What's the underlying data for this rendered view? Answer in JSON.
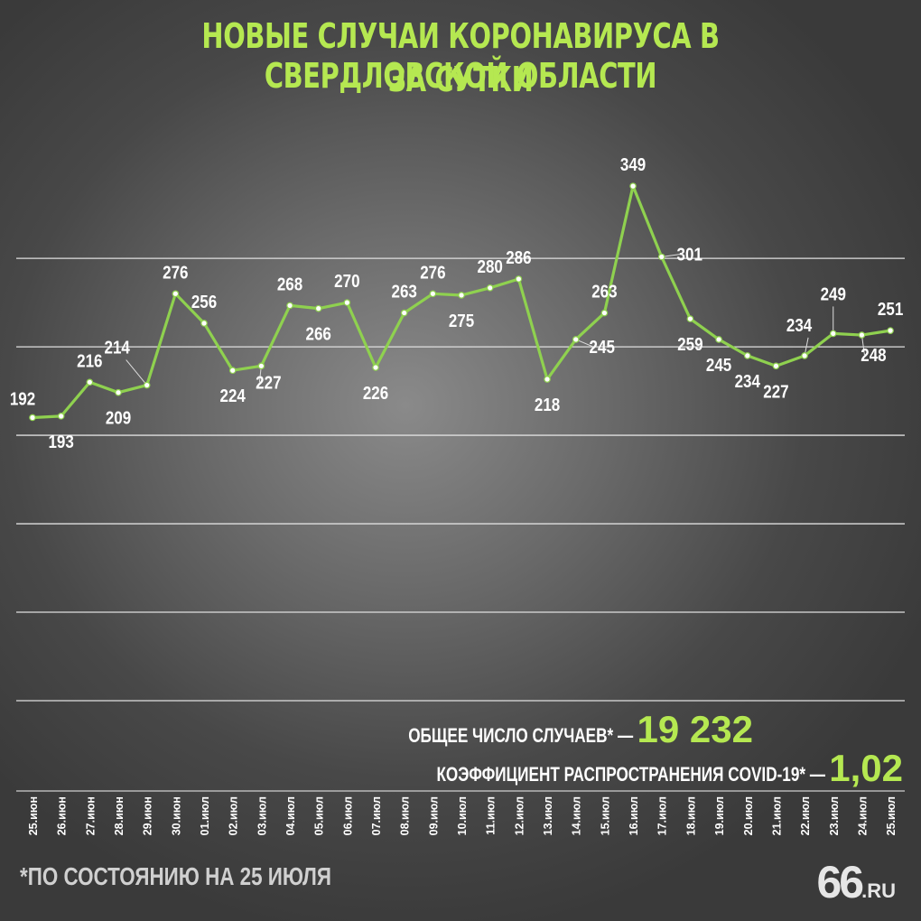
{
  "title_line1": "НОВЫЕ СЛУЧАИ КОРОНАВИРУСА В СВЕРДЛОВСКОЙ ОБЛАСТИ",
  "title_line2": "ЗА СУТКИ",
  "summary": {
    "total_label": "ОБЩЕЕ ЧИСЛО СЛУЧАЕВ* —",
    "total_value": "19 232",
    "rate_label": "КОЭФФИЦИЕНТ РАСПРОСТРАНЕНИЯ COVID-19* —",
    "rate_value": "1,02"
  },
  "footnote": "*ПО СОСТОЯНИЮ НА 25 ИЮЛЯ",
  "logo": {
    "main": "66",
    "suffix": ".RU"
  },
  "colors": {
    "accent": "#b5e851",
    "line": "#8fd14f",
    "text": "#ffffff",
    "grid": "#e0e0e0"
  },
  "chart_data": {
    "type": "line",
    "categories": [
      "25.июн",
      "26.июн",
      "27.июн",
      "28.июн",
      "29.июн",
      "30.июн",
      "01.июл",
      "02.июл",
      "03.июл",
      "04.июл",
      "05.июл",
      "06.июл",
      "07.июл",
      "08.июл",
      "09.июл",
      "10.июл",
      "11.июл",
      "12.июл",
      "13.июл",
      "14.июл",
      "15.июл",
      "16.июл",
      "17.июл",
      "18.июл",
      "19.июл",
      "20.июл",
      "21.июл",
      "22.июл",
      "23.июл",
      "24.июл",
      "25.июл"
    ],
    "values": [
      192,
      193,
      216,
      209,
      214,
      276,
      256,
      224,
      227,
      268,
      266,
      270,
      226,
      263,
      276,
      275,
      280,
      286,
      218,
      245,
      263,
      349,
      301,
      259,
      245,
      234,
      227,
      234,
      249,
      248,
      251
    ],
    "ylim": [
      0,
      350
    ],
    "grid": true
  }
}
